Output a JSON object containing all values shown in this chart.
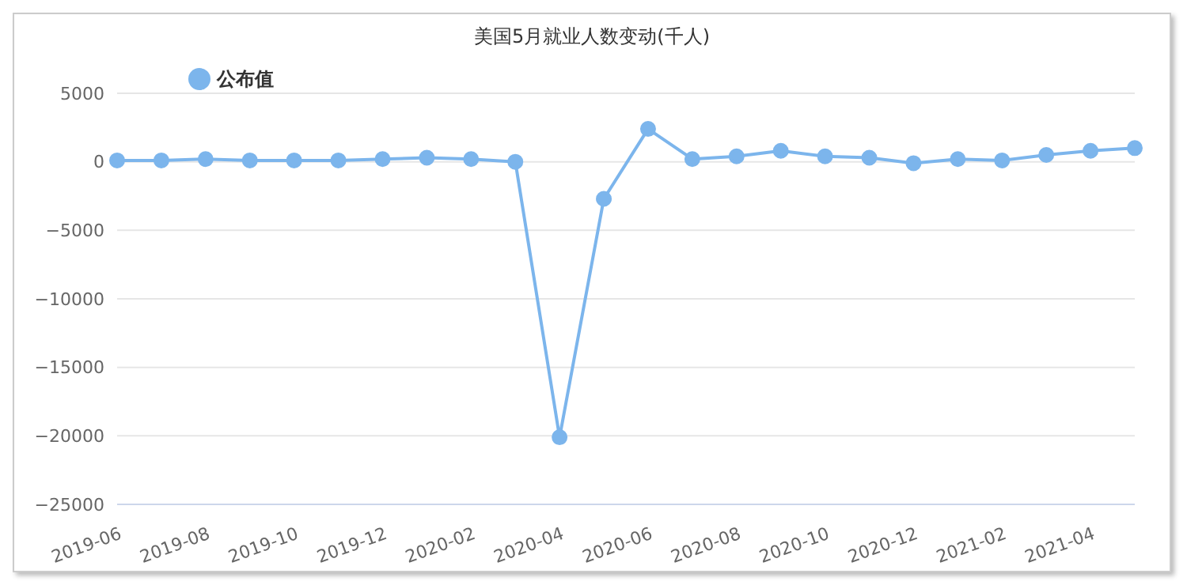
{
  "chart_data": {
    "type": "line",
    "title": "美国5月就业人数变动(千人)",
    "categories": [
      "2019-06",
      null,
      "2019-08",
      null,
      "2019-10",
      null,
      "2019-12",
      null,
      "2020-02",
      null,
      "2020-04",
      null,
      "2020-06",
      null,
      "2020-08",
      null,
      "2020-10",
      null,
      "2020-12",
      null,
      "2021-02",
      null,
      "2021-04",
      null
    ],
    "series": [
      {
        "name": "公布值",
        "color": "#7cb5ec",
        "values": [
          100,
          100,
          200,
          100,
          100,
          100,
          200,
          300,
          200,
          0,
          -20100,
          -2700,
          2400,
          200,
          400,
          800,
          400,
          300,
          -100,
          200,
          100,
          500,
          800,
          1000
        ]
      }
    ],
    "ylim": [
      -25000,
      5000
    ],
    "yticks": [
      -25000,
      -20000,
      -15000,
      -10000,
      -5000,
      0,
      5000
    ],
    "grid": "y",
    "legend": "top left",
    "marker": "circle",
    "line_style": "solid"
  }
}
